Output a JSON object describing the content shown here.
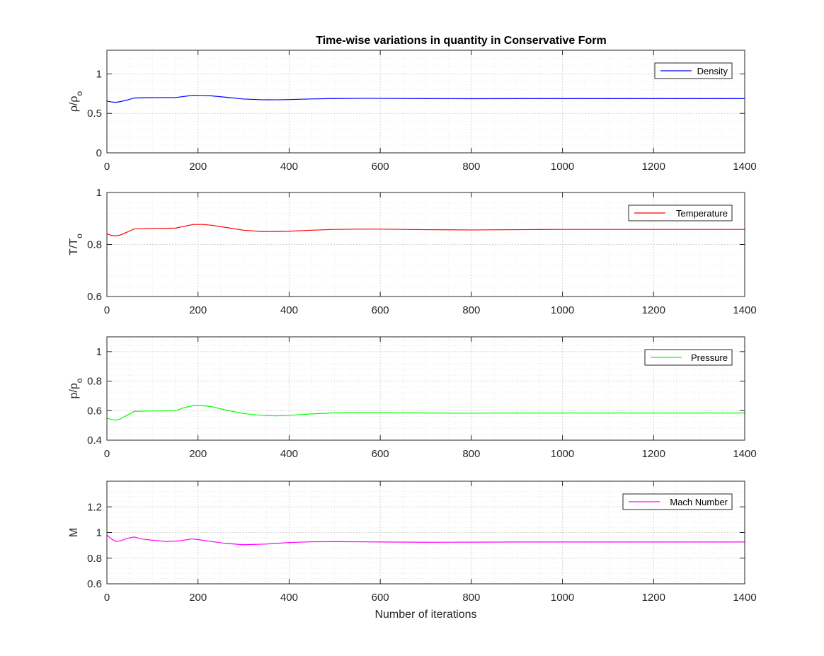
{
  "chart_data": [
    {
      "type": "line",
      "title": "Time-wise variations in quantity in Conservative Form",
      "ylabel": "ρ/ρ_o",
      "xlabel": "",
      "xlim": [
        0,
        1400
      ],
      "ylim": [
        0,
        1.3
      ],
      "xticks": [
        "0",
        "200",
        "400",
        "600",
        "800",
        "1000",
        "1200",
        "1400"
      ],
      "yticks": [
        "0",
        "0.5",
        "1"
      ],
      "ytick_values": [
        0,
        0.5,
        1
      ],
      "grid": "on (major and minor)",
      "legend_position": "top-right",
      "series": [
        {
          "name": "Density",
          "color": "#0000ff",
          "x": [
            0,
            10,
            20,
            30,
            45,
            60,
            80,
            100,
            120,
            150,
            170,
            190,
            210,
            230,
            260,
            300,
            340,
            370,
            400,
            450,
            500,
            550,
            600,
            700,
            800,
            900,
            1000,
            1100,
            1200,
            1300,
            1400
          ],
          "y": [
            0.655,
            0.645,
            0.64,
            0.65,
            0.67,
            0.695,
            0.698,
            0.7,
            0.7,
            0.7,
            0.715,
            0.73,
            0.728,
            0.722,
            0.705,
            0.682,
            0.673,
            0.672,
            0.675,
            0.683,
            0.688,
            0.69,
            0.69,
            0.687,
            0.686,
            0.687,
            0.687,
            0.687,
            0.687,
            0.687,
            0.687
          ]
        }
      ]
    },
    {
      "type": "line",
      "title": "",
      "ylabel": "T/T_o",
      "xlabel": "",
      "xlim": [
        0,
        1400
      ],
      "ylim": [
        0.6,
        1
      ],
      "xticks": [
        "0",
        "200",
        "400",
        "600",
        "800",
        "1000",
        "1200",
        "1400"
      ],
      "yticks": [
        "0.6",
        "0.8",
        "1"
      ],
      "ytick_values": [
        0.6,
        0.8,
        1
      ],
      "grid": "on (major and minor)",
      "legend_position": "top-right",
      "series": [
        {
          "name": "Temperature",
          "color": "#ff0000",
          "x": [
            0,
            10,
            20,
            30,
            45,
            60,
            80,
            100,
            120,
            150,
            170,
            190,
            210,
            230,
            260,
            300,
            340,
            370,
            400,
            450,
            500,
            550,
            600,
            700,
            800,
            900,
            1000,
            1100,
            1200,
            1300,
            1400
          ],
          "y": [
            0.841,
            0.835,
            0.833,
            0.837,
            0.848,
            0.86,
            0.861,
            0.862,
            0.862,
            0.863,
            0.87,
            0.877,
            0.877,
            0.874,
            0.866,
            0.855,
            0.85,
            0.85,
            0.851,
            0.855,
            0.858,
            0.859,
            0.859,
            0.857,
            0.856,
            0.857,
            0.858,
            0.858,
            0.858,
            0.858,
            0.858
          ]
        }
      ]
    },
    {
      "type": "line",
      "title": "",
      "ylabel": "p/p_o",
      "xlabel": "",
      "xlim": [
        0,
        1400
      ],
      "ylim": [
        0.4,
        1.1
      ],
      "xticks": [
        "0",
        "200",
        "400",
        "600",
        "800",
        "1000",
        "1200",
        "1400"
      ],
      "yticks": [
        "0.4",
        "0.6",
        "0.8",
        "1"
      ],
      "ytick_values": [
        0.4,
        0.6,
        0.8,
        1
      ],
      "grid": "on (major and minor)",
      "legend_position": "top-right",
      "series": [
        {
          "name": "Pressure",
          "color": "#00ff00",
          "x": [
            0,
            10,
            20,
            30,
            45,
            60,
            80,
            100,
            120,
            150,
            170,
            190,
            210,
            230,
            260,
            300,
            340,
            370,
            400,
            450,
            500,
            550,
            600,
            700,
            800,
            900,
            1000,
            1100,
            1200,
            1300,
            1400
          ],
          "y": [
            0.55,
            0.54,
            0.535,
            0.545,
            0.57,
            0.595,
            0.597,
            0.598,
            0.598,
            0.6,
            0.62,
            0.635,
            0.633,
            0.627,
            0.605,
            0.58,
            0.568,
            0.565,
            0.568,
            0.578,
            0.585,
            0.588,
            0.588,
            0.584,
            0.583,
            0.584,
            0.584,
            0.584,
            0.584,
            0.584,
            0.584
          ]
        }
      ]
    },
    {
      "type": "line",
      "title": "",
      "ylabel": "M",
      "xlabel": "Number of iterations",
      "xlim": [
        0,
        1400
      ],
      "ylim": [
        0.6,
        1.4
      ],
      "xticks": [
        "0",
        "200",
        "400",
        "600",
        "800",
        "1000",
        "1200",
        "1400"
      ],
      "yticks": [
        "0.6",
        "0.8",
        "1",
        "1.2"
      ],
      "ytick_values": [
        0.6,
        0.8,
        1,
        1.2
      ],
      "grid": "on (major and minor)",
      "legend_position": "top-right",
      "series": [
        {
          "name": "Mach Number",
          "color": "#ff00ff",
          "x": [
            0,
            10,
            20,
            30,
            45,
            60,
            75,
            100,
            130,
            160,
            185,
            200,
            230,
            260,
            300,
            350,
            400,
            450,
            500,
            550,
            600,
            700,
            800,
            900,
            1000,
            1100,
            1200,
            1300,
            1400
          ],
          "y": [
            0.98,
            0.95,
            0.93,
            0.935,
            0.955,
            0.965,
            0.95,
            0.94,
            0.93,
            0.935,
            0.95,
            0.945,
            0.93,
            0.915,
            0.905,
            0.91,
            0.922,
            0.928,
            0.929,
            0.928,
            0.926,
            0.924,
            0.925,
            0.926,
            0.926,
            0.926,
            0.926,
            0.926,
            0.926
          ]
        }
      ]
    }
  ]
}
